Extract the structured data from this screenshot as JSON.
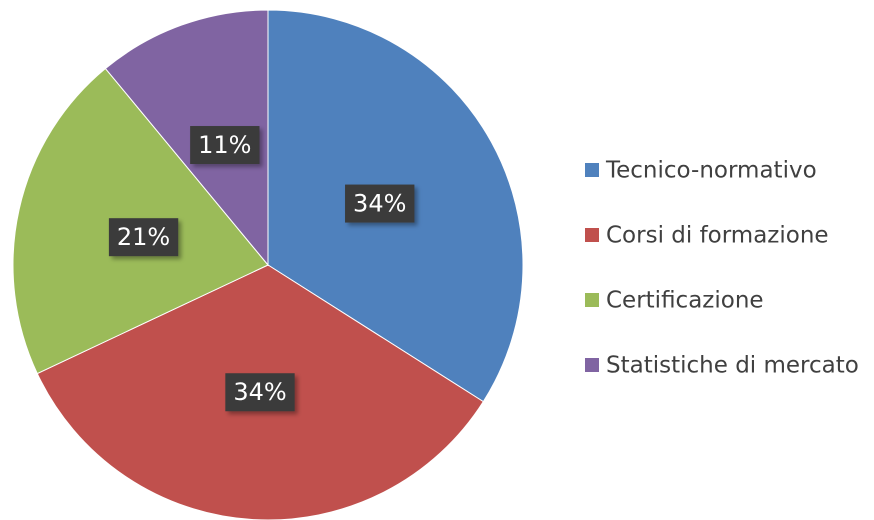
{
  "chart_data": {
    "type": "pie",
    "categories": [
      "Tecnico-normativo",
      "Corsi di formazione",
      "Certificazione",
      "Statistiche di mercato"
    ],
    "values": [
      34,
      34,
      21,
      11
    ],
    "value_labels": [
      "34%",
      "34%",
      "21%",
      "11%"
    ],
    "colors": [
      "#4f81bd",
      "#c0504d",
      "#9bbb59",
      "#8064a2"
    ],
    "legend": "right"
  }
}
